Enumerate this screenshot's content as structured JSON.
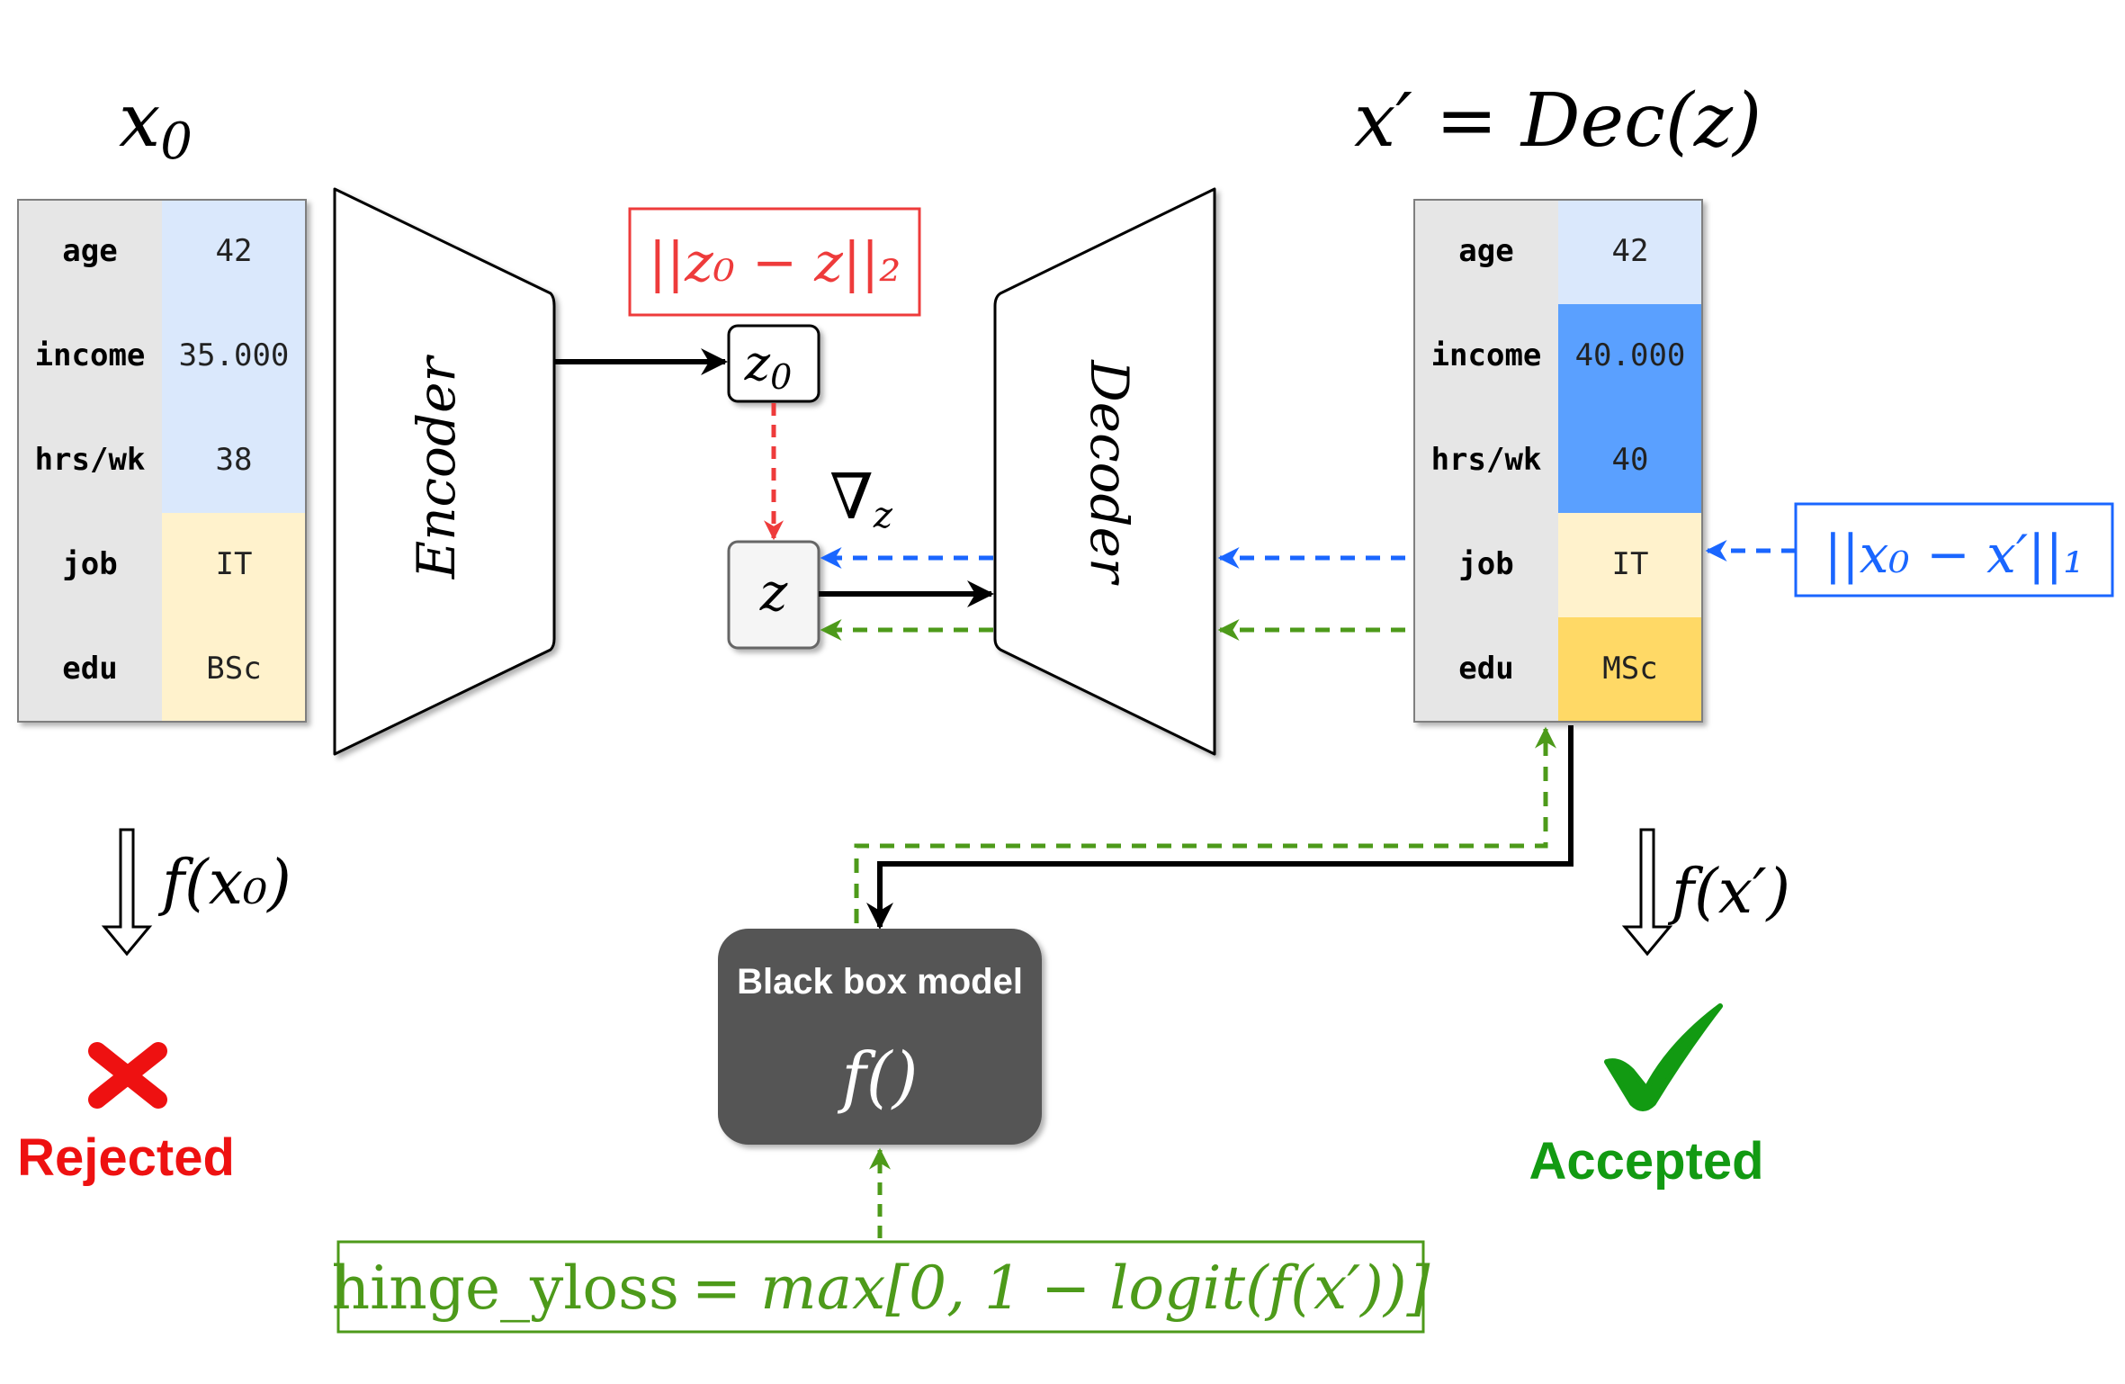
{
  "title_left": "x",
  "title_left_sub": "0",
  "title_right": "x′ = Dec(z)",
  "input_table": {
    "rows": [
      {
        "label": "age",
        "value": "42"
      },
      {
        "label": "income",
        "value": "35.000"
      },
      {
        "label": "hrs/wk",
        "value": "38"
      },
      {
        "label": "job",
        "value": "IT"
      },
      {
        "label": "edu",
        "value": "BSc"
      }
    ]
  },
  "output_table": {
    "rows": [
      {
        "label": "age",
        "value": "42"
      },
      {
        "label": "income",
        "value": "40.000"
      },
      {
        "label": "hrs/wk",
        "value": "40"
      },
      {
        "label": "job",
        "value": "IT"
      },
      {
        "label": "edu",
        "value": "MSc"
      }
    ]
  },
  "encoder_label": "Encoder",
  "decoder_label": "Decoder",
  "z0_label": "z",
  "z0_sub": "0",
  "z_label": "z",
  "latent_loss": "||z₀ − z||₂",
  "gradient_label": "∇",
  "gradient_sub": "z",
  "proximity_loss": "||x₀ − x′||₁",
  "f_x0": "f(x₀)",
  "f_xprime": "f(x′)",
  "rejected_label": "Rejected",
  "accepted_label": "Accepted",
  "black_box": {
    "title": "Black box model",
    "func": "f()"
  },
  "hinge_loss": {
    "name": "hinge_yloss",
    "formula": "= max[0, 1 − logit(f(x′))]"
  },
  "colors": {
    "red": "#ee3b3b",
    "blue": "#1a66ff",
    "green": "#4d9a1a",
    "label_bg": "#e6e6e6",
    "light_blue": "#dae8fc",
    "strong_blue": "#5aa0ff",
    "light_yellow": "#fff2cc",
    "strong_yellow": "#ffd966",
    "black_box": "#555555"
  }
}
